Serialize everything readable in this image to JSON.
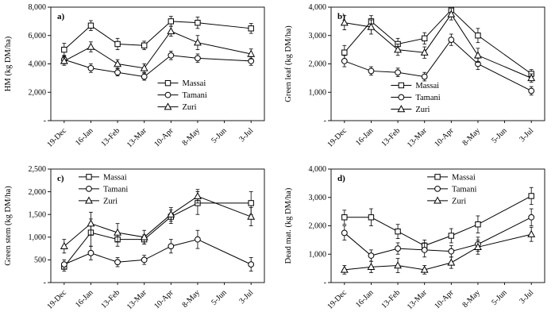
{
  "figure": {
    "x_axis_labels": [
      "19-Dec",
      "16-Jan",
      "13-Feb",
      "13-Mar",
      "10-Apr",
      "8-May",
      "5-Jun",
      "3-Jul"
    ],
    "legend_entries": [
      "Massai",
      "Tamani",
      "Zuri"
    ],
    "marker_map": {
      "Massai": "square",
      "Tamani": "circle",
      "Zuri": "triangle"
    },
    "line_color": "#000000",
    "background_color": "#ffffff"
  },
  "chart_data": [
    {
      "id": "a",
      "type": "line",
      "panel_label": "a)",
      "ylabel": "HM (kg DM/ha)",
      "ylim": [
        0,
        8000
      ],
      "ytick_step": 2000,
      "zero_tick_label": "-",
      "error_bars": true,
      "grid": false,
      "legend_position": "inside-center-right",
      "legend": {
        "x": 0.5,
        "y": 0.62
      },
      "categories": [
        "19-Dec",
        "16-Jan",
        "13-Feb",
        "13-Mar",
        "10-Apr",
        "8-May",
        "5-Jun",
        "3-Jul"
      ],
      "series": [
        {
          "name": "Massai",
          "marker": "square",
          "values": [
            5000,
            6700,
            5400,
            5300,
            7000,
            6900,
            null,
            6500
          ],
          "errors": [
            450,
            350,
            400,
            300,
            350,
            400,
            null,
            350
          ]
        },
        {
          "name": "Tamani",
          "marker": "circle",
          "values": [
            4300,
            3700,
            3400,
            3100,
            4600,
            4400,
            null,
            4200
          ],
          "errors": [
            300,
            300,
            250,
            250,
            300,
            300,
            null,
            300
          ]
        },
        {
          "name": "Zuri",
          "marker": "triangle",
          "values": [
            4200,
            5200,
            4000,
            3700,
            6300,
            5500,
            null,
            4700
          ],
          "errors": [
            300,
            350,
            300,
            300,
            350,
            500,
            null,
            350
          ]
        }
      ]
    },
    {
      "id": "b",
      "type": "line",
      "panel_label": "b)",
      "ylabel": "Green leaf (kg DM/ha)",
      "ylim": [
        0,
        4000
      ],
      "ytick_step": 1000,
      "zero_tick_label": "-",
      "error_bars": true,
      "grid": false,
      "legend_position": "inside-bottom-center",
      "legend": {
        "x": 0.28,
        "y": 0.64
      },
      "categories": [
        "19-Dec",
        "16-Jan",
        "13-Feb",
        "13-Mar",
        "10-Apr",
        "8-May",
        "5-Jun",
        "3-Jul"
      ],
      "series": [
        {
          "name": "Massai",
          "marker": "square",
          "values": [
            2400,
            3500,
            2700,
            2900,
            3900,
            3000,
            null,
            1650
          ],
          "errors": [
            250,
            200,
            200,
            200,
            200,
            250,
            null,
            150
          ]
        },
        {
          "name": "Tamani",
          "marker": "circle",
          "values": [
            2100,
            1750,
            1700,
            1550,
            2850,
            2000,
            null,
            1050
          ],
          "errors": [
            200,
            150,
            150,
            150,
            200,
            200,
            null,
            150
          ]
        },
        {
          "name": "Zuri",
          "marker": "triangle",
          "values": [
            3450,
            3300,
            2500,
            2400,
            3750,
            2300,
            null,
            1500
          ],
          "errors": [
            250,
            250,
            200,
            200,
            200,
            250,
            null,
            150
          ]
        }
      ]
    },
    {
      "id": "c",
      "type": "line",
      "panel_label": "c)",
      "ylabel": "Green stem (kg DM/ha)",
      "ylim": [
        0,
        2500
      ],
      "ytick_step": 500,
      "zero_tick_label": "-",
      "error_bars": true,
      "grid": false,
      "legend_position": "inside-top-left",
      "legend": {
        "x": 0.13,
        "y": 0.02
      },
      "categories": [
        "19-Dec",
        "16-Jan",
        "13-Feb",
        "13-Mar",
        "10-Apr",
        "8-May",
        "5-Jun",
        "3-Jul"
      ],
      "series": [
        {
          "name": "Massai",
          "marker": "square",
          "values": [
            350,
            1100,
            950,
            950,
            1450,
            1750,
            null,
            1750
          ],
          "errors": [
            100,
            300,
            150,
            100,
            150,
            250,
            null,
            250
          ]
        },
        {
          "name": "Tamani",
          "marker": "circle",
          "values": [
            400,
            650,
            450,
            500,
            800,
            950,
            null,
            400
          ],
          "errors": [
            100,
            150,
            100,
            100,
            150,
            200,
            null,
            150
          ]
        },
        {
          "name": "Zuri",
          "marker": "triangle",
          "values": [
            800,
            1300,
            1100,
            1000,
            1500,
            1900,
            null,
            1450
          ],
          "errors": [
            150,
            250,
            200,
            150,
            150,
            150,
            null,
            200
          ]
        }
      ]
    },
    {
      "id": "d",
      "type": "line",
      "panel_label": "d)",
      "ylabel": "Dead mat. (kg DM/ha)",
      "ylim": [
        0,
        4000
      ],
      "ytick_step": 1000,
      "zero_tick_label": "-",
      "error_bars": true,
      "grid": false,
      "legend_position": "inside-top-right",
      "legend": {
        "x": 0.45,
        "y": 0.02
      },
      "categories": [
        "19-Dec",
        "16-Jan",
        "13-Feb",
        "13-Mar",
        "10-Apr",
        "8-May",
        "5-Jun",
        "3-Jul"
      ],
      "series": [
        {
          "name": "Massai",
          "marker": "square",
          "values": [
            2300,
            2300,
            1800,
            1300,
            1650,
            2050,
            null,
            3050
          ],
          "errors": [
            250,
            300,
            250,
            200,
            250,
            300,
            null,
            300
          ]
        },
        {
          "name": "Tamani",
          "marker": "circle",
          "values": [
            1750,
            950,
            1200,
            1150,
            1100,
            1350,
            null,
            2300
          ],
          "errors": [
            250,
            200,
            200,
            250,
            200,
            250,
            null,
            300
          ]
        },
        {
          "name": "Zuri",
          "marker": "triangle",
          "values": [
            450,
            550,
            600,
            450,
            700,
            1250,
            null,
            1700
          ],
          "errors": [
            150,
            200,
            250,
            150,
            200,
            250,
            null,
            250
          ]
        }
      ]
    }
  ]
}
